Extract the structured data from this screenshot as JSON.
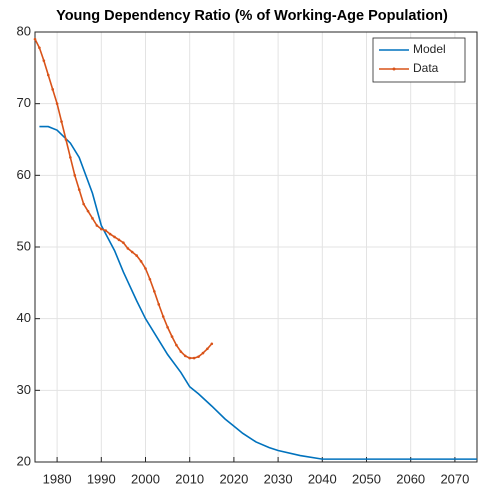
{
  "chart_data": {
    "type": "line",
    "title": "Young Dependency Ratio (% of Working-Age Population)",
    "xlim": [
      1975,
      2075
    ],
    "xticks": [
      1980,
      1990,
      2000,
      2010,
      2020,
      2030,
      2040,
      2050,
      2060,
      2070
    ],
    "ylim": [
      20,
      80
    ],
    "yticks": [
      20,
      30,
      40,
      50,
      60,
      70,
      80
    ],
    "grid": true,
    "legend": "top-right",
    "series": [
      {
        "name": "Model",
        "color": "#0072BD",
        "marker": false,
        "x": [
          1976,
          1978,
          1980,
          1983,
          1985,
          1988,
          1990,
          1993,
          1995,
          1998,
          2000,
          2003,
          2005,
          2008,
          2010,
          2012,
          2015,
          2018,
          2020,
          2022,
          2025,
          2028,
          2030,
          2035,
          2040,
          2045,
          2050,
          2060,
          2070,
          2075
        ],
        "values": [
          66.8,
          66.8,
          66.3,
          64.5,
          62.5,
          57.5,
          53,
          49.5,
          46.5,
          42.5,
          40,
          37,
          35,
          32.5,
          30.5,
          29.5,
          27.8,
          26,
          25,
          24,
          22.8,
          22,
          21.6,
          20.9,
          20.4,
          20.4,
          20.4,
          20.4,
          20.4,
          20.4
        ]
      },
      {
        "name": "Data",
        "color": "#D95319",
        "marker": true,
        "x": [
          1975,
          1976,
          1977,
          1978,
          1979,
          1980,
          1981,
          1982,
          1983,
          1984,
          1985,
          1986,
          1987,
          1988,
          1989,
          1990,
          1991,
          1992,
          1993,
          1994,
          1995,
          1996,
          1997,
          1998,
          1999,
          2000,
          2001,
          2002,
          2003,
          2004,
          2005,
          2006,
          2007,
          2008,
          2009,
          2010,
          2011,
          2012,
          2013,
          2014,
          2015
        ],
        "values": [
          79,
          77.8,
          76,
          74,
          72,
          70,
          67.5,
          65,
          62.5,
          60,
          58,
          56,
          55,
          54,
          53,
          52.5,
          52.3,
          51.8,
          51.4,
          51,
          50.6,
          49.8,
          49.3,
          48.8,
          48,
          47,
          45.5,
          43.8,
          42,
          40.3,
          38.8,
          37.5,
          36.3,
          35.4,
          34.8,
          34.5,
          34.5,
          34.7,
          35.2,
          35.8,
          36.5
        ]
      }
    ]
  }
}
